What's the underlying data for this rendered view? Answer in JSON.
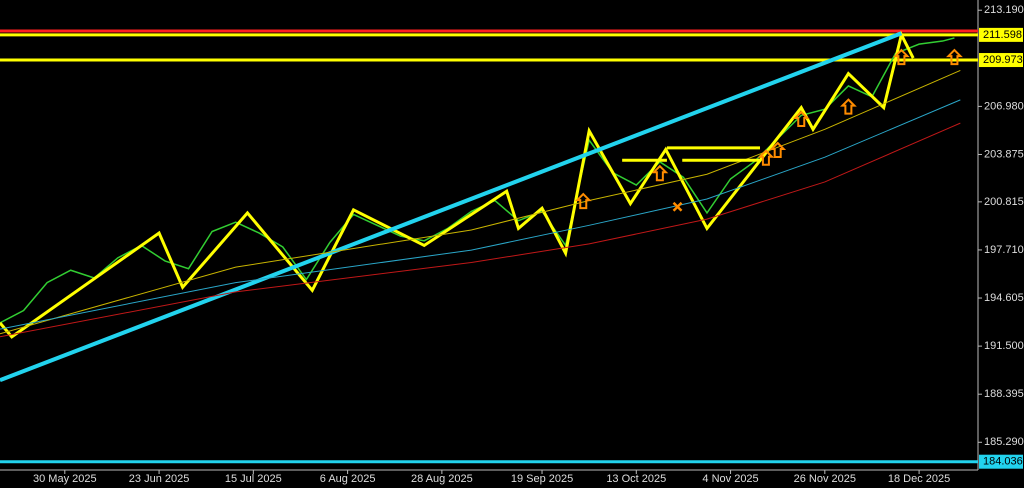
{
  "chart_data": {
    "type": "price",
    "xlim": [
      0,
      166
    ],
    "ylim": [
      183.5,
      213.85
    ],
    "xticks": [
      {
        "value": 11,
        "label": "30 May 2025"
      },
      {
        "value": 27,
        "label": "23 Jun 2025"
      },
      {
        "value": 43,
        "label": "15 Jul 2025"
      },
      {
        "value": 59,
        "label": "6 Aug 2025"
      },
      {
        "value": 75,
        "label": "28 Aug 2025"
      },
      {
        "value": 92,
        "label": "19 Sep 2025"
      },
      {
        "value": 108,
        "label": "13 Oct 2025"
      },
      {
        "value": 124,
        "label": "4 Nov 2025"
      },
      {
        "value": 140,
        "label": "26 Nov 2025"
      },
      {
        "value": 156,
        "label": "18 Dec 2025"
      }
    ],
    "yticks": [
      {
        "value": 213.19,
        "label": "213.190"
      },
      {
        "value": 206.98,
        "label": "206.980"
      },
      {
        "value": 203.875,
        "label": "203.875"
      },
      {
        "value": 200.815,
        "label": "200.815"
      },
      {
        "value": 197.71,
        "label": "197.710"
      },
      {
        "value": 194.605,
        "label": "194.605"
      },
      {
        "value": 191.5,
        "label": "191.500"
      },
      {
        "value": 188.395,
        "label": "188.395"
      },
      {
        "value": 185.29,
        "label": "185.290"
      }
    ],
    "price": {
      "color": "#32cd32",
      "x": [
        0,
        4,
        8,
        12,
        16,
        20,
        24,
        28,
        32,
        36,
        40,
        44,
        48,
        52,
        56,
        60,
        64,
        68,
        72,
        76,
        80,
        84,
        88,
        92,
        96,
        100,
        104,
        108,
        112,
        116,
        120,
        124,
        128,
        132,
        136,
        140,
        144,
        148,
        152,
        156,
        160,
        162
      ],
      "values": [
        193.0,
        193.8,
        195.6,
        196.4,
        195.9,
        197.2,
        198.0,
        197.0,
        196.5,
        198.9,
        199.5,
        198.8,
        197.9,
        195.8,
        198.2,
        200.0,
        199.3,
        198.6,
        198.3,
        199.1,
        200.2,
        200.9,
        199.6,
        200.2,
        198.0,
        204.8,
        202.7,
        201.9,
        203.4,
        202.4,
        200.1,
        202.3,
        203.4,
        204.9,
        206.4,
        206.8,
        208.3,
        207.6,
        210.4,
        211.0,
        211.2,
        211.4
      ]
    },
    "lines": [
      {
        "color": "#ffff00",
        "width": 3,
        "x": [
          0,
          2,
          27,
          31,
          42,
          53,
          60,
          72,
          86,
          88,
          92,
          96,
          100,
          107,
          113,
          120,
          136,
          138,
          144,
          150,
          153,
          155
        ],
        "values": [
          193.0,
          192.1,
          198.8,
          195.3,
          200.1,
          195.1,
          200.3,
          198.0,
          201.5,
          199.1,
          200.4,
          197.5,
          205.4,
          200.7,
          204.2,
          199.1,
          206.9,
          205.5,
          209.1,
          206.9,
          211.6,
          210.1
        ]
      },
      {
        "color": "#22d3ee",
        "width": 4,
        "x": [
          0,
          153
        ],
        "values": [
          189.3,
          211.7
        ]
      },
      {
        "color": "#c8b400",
        "width": 1,
        "x": [
          0,
          40,
          80,
          100,
          120,
          140,
          163
        ],
        "values": [
          192.3,
          196.6,
          199.0,
          200.9,
          202.6,
          205.5,
          209.3
        ]
      },
      {
        "color": "#2aa6c8",
        "width": 1,
        "x": [
          0,
          40,
          80,
          100,
          120,
          140,
          163
        ],
        "values": [
          192.6,
          195.6,
          197.7,
          199.3,
          201.0,
          203.7,
          207.4
        ]
      },
      {
        "color": "#c01818",
        "width": 1,
        "x": [
          0,
          40,
          80,
          100,
          120,
          140,
          163
        ],
        "values": [
          192.1,
          195.0,
          196.9,
          198.1,
          199.7,
          202.1,
          205.9
        ]
      }
    ],
    "levels": [
      {
        "color": "#ffff00",
        "x": [
          105.6,
          113.2
        ],
        "value": 203.5
      },
      {
        "color": "#ffff00",
        "x": [
          113.2,
          129
        ],
        "value": 204.3
      },
      {
        "color": "#ffff00",
        "x": [
          115.8,
          129
        ],
        "value": 203.5
      }
    ],
    "hlines": [
      {
        "color": "#ff2020",
        "value": 211.85
      },
      {
        "color": "#ffff00",
        "value": 211.598,
        "label": "211.598"
      },
      {
        "color": "#ffff00",
        "value": 209.973,
        "label": "209.973"
      },
      {
        "color": "#22d3ee",
        "value": 184.036,
        "label": "184.036"
      }
    ],
    "signals": {
      "color": "#ff8c00",
      "x": [
        99,
        112,
        130,
        132,
        136,
        144,
        153,
        162
      ],
      "values": [
        200.8,
        202.6,
        203.6,
        204.1,
        206.1,
        206.9,
        210.1,
        210.1
      ]
    },
    "cross": {
      "color": "#ff8c00",
      "x": 115,
      "value": 200.5
    }
  }
}
